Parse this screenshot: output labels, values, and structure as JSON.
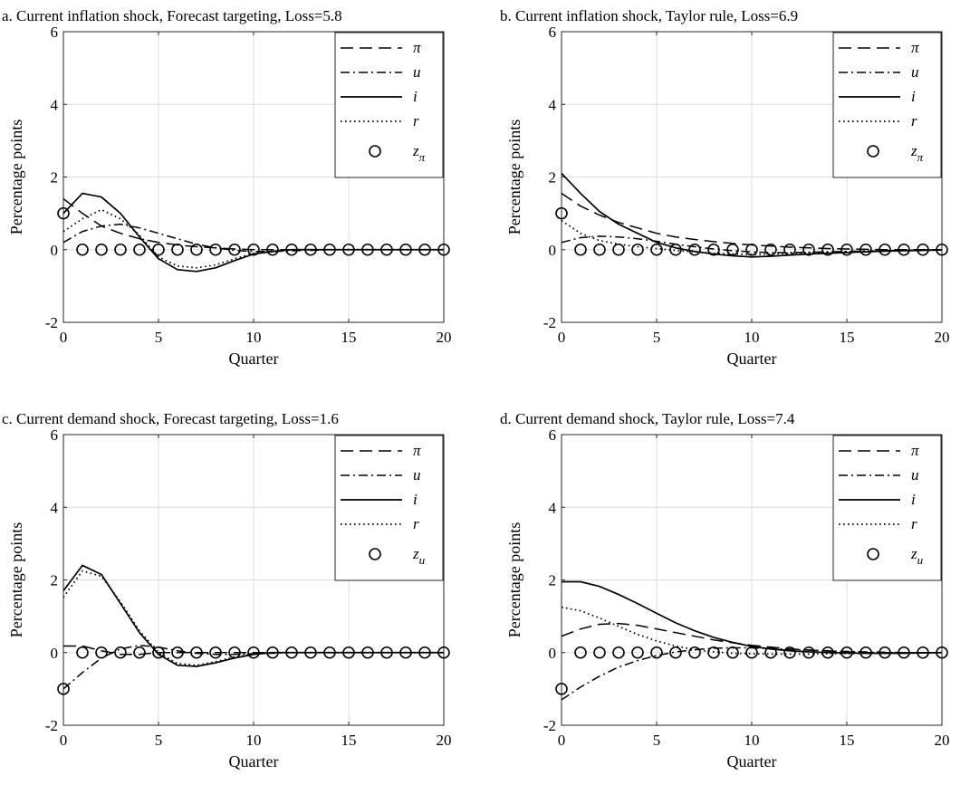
{
  "chart_data": [
    {
      "type": "line",
      "title": "a. Current inflation shock, Forecast targeting, Loss=5.8",
      "xlabel": "Quarter",
      "ylabel": "Percentage points",
      "xlim": [
        0,
        20
      ],
      "ylim": [
        -2,
        6
      ],
      "xticks": [
        "0",
        "5",
        "10",
        "15",
        "20"
      ],
      "yticks": [
        "-2",
        "0",
        "2",
        "4",
        "6"
      ],
      "grid": true,
      "legend_position": "top-right",
      "x": [
        0,
        1,
        2,
        3,
        4,
        5,
        6,
        7,
        8,
        9,
        10,
        11,
        12,
        13,
        14,
        15,
        16,
        17,
        18,
        19,
        20
      ],
      "series": [
        {
          "name": "π",
          "style": "dashed",
          "values": [
            1.4,
            1.0,
            0.65,
            0.45,
            0.3,
            0.2,
            0.13,
            0.08,
            0.05,
            0.02,
            0,
            0,
            0,
            0,
            0,
            0,
            0,
            0,
            0,
            0,
            0
          ]
        },
        {
          "name": "u",
          "style": "dashdot",
          "values": [
            0.2,
            0.5,
            0.65,
            0.7,
            0.6,
            0.45,
            0.3,
            0.15,
            0.05,
            -0.02,
            -0.05,
            -0.05,
            -0.03,
            -0.02,
            0,
            0,
            0,
            0,
            0,
            0,
            0
          ]
        },
        {
          "name": "i",
          "style": "solid",
          "values": [
            1.0,
            1.55,
            1.45,
            1.0,
            0.35,
            -0.25,
            -0.55,
            -0.6,
            -0.5,
            -0.3,
            -0.12,
            -0.05,
            0,
            0,
            0,
            0,
            0,
            0,
            0,
            0,
            0
          ]
        },
        {
          "name": "r",
          "style": "dotted",
          "values": [
            0.5,
            0.85,
            1.1,
            0.85,
            0.4,
            -0.2,
            -0.45,
            -0.5,
            -0.42,
            -0.25,
            -0.1,
            -0.04,
            0,
            0,
            0,
            0,
            0,
            0,
            0,
            0,
            0
          ]
        },
        {
          "name": "z",
          "subscript": "π",
          "style": "markers",
          "values": [
            1,
            0,
            0,
            0,
            0,
            0,
            0,
            0,
            0,
            0,
            0,
            0,
            0,
            0,
            0,
            0,
            0,
            0,
            0,
            0,
            0
          ]
        }
      ]
    },
    {
      "type": "line",
      "title": "b. Current inflation shock, Taylor rule, Loss=6.9",
      "xlabel": "Quarter",
      "ylabel": "Percentage points",
      "xlim": [
        0,
        20
      ],
      "ylim": [
        -2,
        6
      ],
      "xticks": [
        "0",
        "5",
        "10",
        "15",
        "20"
      ],
      "yticks": [
        "-2",
        "0",
        "2",
        "4",
        "6"
      ],
      "grid": true,
      "legend_position": "top-right",
      "x": [
        0,
        1,
        2,
        3,
        4,
        5,
        6,
        7,
        8,
        9,
        10,
        11,
        12,
        13,
        14,
        15,
        16,
        17,
        18,
        19,
        20
      ],
      "series": [
        {
          "name": "π",
          "style": "dashed",
          "values": [
            1.55,
            1.2,
            0.95,
            0.75,
            0.6,
            0.45,
            0.35,
            0.28,
            0.22,
            0.17,
            0.13,
            0.1,
            0.07,
            0.05,
            0.03,
            0.02,
            0.01,
            0,
            0,
            0,
            0
          ]
        },
        {
          "name": "u",
          "style": "dashdot",
          "values": [
            0.2,
            0.33,
            0.37,
            0.35,
            0.3,
            0.23,
            0.15,
            0.08,
            0.02,
            -0.03,
            -0.06,
            -0.08,
            -0.08,
            -0.07,
            -0.06,
            -0.05,
            -0.04,
            -0.03,
            -0.02,
            -0.01,
            0
          ]
        },
        {
          "name": "i",
          "style": "solid",
          "values": [
            2.1,
            1.55,
            1.05,
            0.7,
            0.45,
            0.2,
            0.05,
            -0.05,
            -0.12,
            -0.17,
            -0.2,
            -0.18,
            -0.15,
            -0.12,
            -0.1,
            -0.08,
            -0.06,
            -0.04,
            -0.03,
            -0.02,
            -0.01
          ]
        },
        {
          "name": "r",
          "style": "dotted",
          "values": [
            0.8,
            0.45,
            0.25,
            0.15,
            0.08,
            0.03,
            -0.02,
            -0.06,
            -0.1,
            -0.12,
            -0.13,
            -0.12,
            -0.1,
            -0.08,
            -0.07,
            -0.05,
            -0.04,
            -0.03,
            -0.02,
            -0.01,
            0
          ]
        },
        {
          "name": "z",
          "subscript": "π",
          "style": "markers",
          "values": [
            1,
            0,
            0,
            0,
            0,
            0,
            0,
            0,
            0,
            0,
            0,
            0,
            0,
            0,
            0,
            0,
            0,
            0,
            0,
            0,
            0
          ]
        }
      ]
    },
    {
      "type": "line",
      "title": "c. Current demand shock, Forecast targeting, Loss=1.6",
      "xlabel": "Quarter",
      "ylabel": "Percentage points",
      "xlim": [
        0,
        20
      ],
      "ylim": [
        -2,
        6
      ],
      "xticks": [
        "0",
        "5",
        "10",
        "15",
        "20"
      ],
      "yticks": [
        "-2",
        "0",
        "2",
        "4",
        "6"
      ],
      "grid": true,
      "legend_position": "top-right",
      "x": [
        0,
        1,
        2,
        3,
        4,
        5,
        6,
        7,
        8,
        9,
        10,
        11,
        12,
        13,
        14,
        15,
        16,
        17,
        18,
        19,
        20
      ],
      "series": [
        {
          "name": "π",
          "style": "dashed",
          "values": [
            0.18,
            0.18,
            0.05,
            -0.05,
            -0.05,
            0,
            0,
            0,
            0,
            0,
            0,
            0,
            0,
            0,
            0,
            0,
            0,
            0,
            0,
            0,
            0
          ]
        },
        {
          "name": "u",
          "style": "dashdot",
          "values": [
            -1.0,
            -0.55,
            -0.15,
            0.1,
            0.2,
            0.15,
            0.05,
            -0.02,
            -0.05,
            -0.05,
            -0.03,
            -0.02,
            0,
            0,
            0,
            0,
            0,
            0,
            0,
            0,
            0
          ]
        },
        {
          "name": "i",
          "style": "solid",
          "values": [
            1.7,
            2.4,
            2.15,
            1.35,
            0.55,
            -0.05,
            -0.35,
            -0.38,
            -0.28,
            -0.15,
            -0.05,
            0,
            0,
            0,
            0,
            0,
            0,
            0,
            0,
            0,
            0
          ]
        },
        {
          "name": "r",
          "style": "dotted",
          "values": [
            1.52,
            2.25,
            2.1,
            1.4,
            0.6,
            0,
            -0.3,
            -0.35,
            -0.25,
            -0.12,
            -0.04,
            0,
            0,
            0,
            0,
            0,
            0,
            0,
            0,
            0,
            0
          ]
        },
        {
          "name": "z",
          "subscript": "u",
          "style": "markers",
          "values": [
            -1,
            0,
            0,
            0,
            0,
            0,
            0,
            0,
            0,
            0,
            0,
            0,
            0,
            0,
            0,
            0,
            0,
            0,
            0,
            0,
            0
          ]
        }
      ]
    },
    {
      "type": "line",
      "title": "d. Current demand shock, Taylor rule, Loss=7.4",
      "xlabel": "Quarter",
      "ylabel": "Percentage points",
      "xlim": [
        0,
        20
      ],
      "ylim": [
        -2,
        6
      ],
      "xticks": [
        "0",
        "5",
        "10",
        "15",
        "20"
      ],
      "yticks": [
        "-2",
        "0",
        "2",
        "4",
        "6"
      ],
      "grid": true,
      "legend_position": "top-right",
      "x": [
        0,
        1,
        2,
        3,
        4,
        5,
        6,
        7,
        8,
        9,
        10,
        11,
        12,
        13,
        14,
        15,
        16,
        17,
        18,
        19,
        20
      ],
      "series": [
        {
          "name": "π",
          "style": "dashed",
          "values": [
            0.45,
            0.65,
            0.78,
            0.8,
            0.75,
            0.65,
            0.55,
            0.45,
            0.35,
            0.27,
            0.2,
            0.15,
            0.1,
            0.07,
            0.04,
            0.02,
            0,
            0,
            0,
            0,
            0
          ]
        },
        {
          "name": "u",
          "style": "dashdot",
          "values": [
            -1.3,
            -0.95,
            -0.65,
            -0.4,
            -0.22,
            -0.08,
            0.02,
            0.08,
            0.12,
            0.13,
            0.13,
            0.11,
            0.09,
            0.07,
            0.05,
            0.03,
            0.02,
            0.01,
            0,
            0,
            0
          ]
        },
        {
          "name": "i",
          "style": "solid",
          "values": [
            1.95,
            1.95,
            1.82,
            1.6,
            1.35,
            1.08,
            0.82,
            0.6,
            0.42,
            0.28,
            0.17,
            0.1,
            0.05,
            0.02,
            0,
            -0.01,
            -0.02,
            -0.02,
            -0.02,
            -0.01,
            0
          ]
        },
        {
          "name": "r",
          "style": "dotted",
          "values": [
            1.25,
            1.15,
            0.95,
            0.72,
            0.5,
            0.32,
            0.18,
            0.08,
            0.02,
            -0.02,
            -0.03,
            -0.04,
            -0.04,
            -0.04,
            -0.03,
            -0.03,
            -0.02,
            -0.02,
            -0.01,
            -0.01,
            0
          ]
        },
        {
          "name": "z",
          "subscript": "u",
          "style": "markers",
          "values": [
            -1,
            0,
            0,
            0,
            0,
            0,
            0,
            0,
            0,
            0,
            0,
            0,
            0,
            0,
            0,
            0,
            0,
            0,
            0,
            0,
            0
          ]
        }
      ]
    }
  ]
}
